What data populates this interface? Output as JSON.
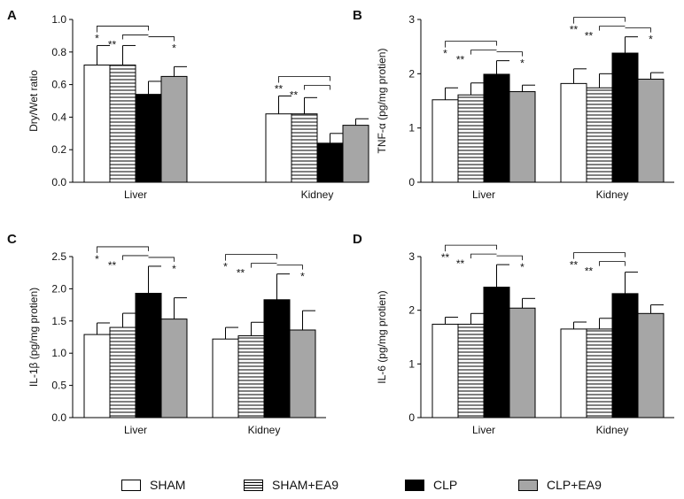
{
  "chart_data": [
    {
      "type": "bar",
      "panel_label": "A",
      "ylabel": "Dry/Wet ratio",
      "ylim": [
        0,
        1.0
      ],
      "yticks": [
        "0.0",
        "0.2",
        "0.4",
        "0.6",
        "0.8",
        "1.0"
      ],
      "categories": [
        "Liver",
        "Kidney"
      ],
      "series": [
        {
          "name": "SHAM",
          "values": [
            0.72,
            0.42
          ],
          "errors": [
            0.12,
            0.11
          ]
        },
        {
          "name": "SHAM+EA9",
          "values": [
            0.72,
            0.42
          ],
          "errors": [
            0.12,
            0.1
          ]
        },
        {
          "name": "CLP",
          "values": [
            0.54,
            0.24
          ],
          "errors": [
            0.08,
            0.06
          ]
        },
        {
          "name": "CLP+EA9",
          "values": [
            0.65,
            0.35
          ],
          "errors": [
            0.06,
            0.04
          ]
        }
      ],
      "significance": [
        {
          "category": "Liver",
          "marks": [
            "*",
            "**",
            "",
            "*"
          ]
        },
        {
          "category": "Kidney",
          "marks": [
            "**",
            "**",
            "",
            ""
          ]
        }
      ]
    },
    {
      "type": "bar",
      "panel_label": "B",
      "ylabel": "TNF-α (pg/mg protien)",
      "ylim": [
        0,
        3
      ],
      "yticks": [
        "0",
        "1",
        "2",
        "3"
      ],
      "categories": [
        "Liver",
        "Kidney"
      ],
      "series": [
        {
          "name": "SHAM",
          "values": [
            1.52,
            1.82
          ],
          "errors": [
            0.22,
            0.27
          ]
        },
        {
          "name": "SHAM+EA9",
          "values": [
            1.61,
            1.74
          ],
          "errors": [
            0.22,
            0.26
          ]
        },
        {
          "name": "CLP",
          "values": [
            1.99,
            2.38
          ],
          "errors": [
            0.25,
            0.3
          ]
        },
        {
          "name": "CLP+EA9",
          "values": [
            1.67,
            1.9
          ],
          "errors": [
            0.12,
            0.12
          ]
        }
      ],
      "significance": [
        {
          "category": "Liver",
          "marks": [
            "*",
            "**",
            "",
            "*"
          ]
        },
        {
          "category": "Kidney",
          "marks": [
            "**",
            "**",
            "",
            "*"
          ]
        }
      ]
    },
    {
      "type": "bar",
      "panel_label": "C",
      "ylabel": "IL-1β (pg/mg protien)",
      "ylim": [
        0,
        2.5
      ],
      "yticks": [
        "0.0",
        "0.5",
        "1.0",
        "1.5",
        "2.0",
        "2.5"
      ],
      "categories": [
        "Liver",
        "Kidney"
      ],
      "series": [
        {
          "name": "SHAM",
          "values": [
            1.29,
            1.22
          ],
          "errors": [
            0.18,
            0.18
          ]
        },
        {
          "name": "SHAM+EA9",
          "values": [
            1.4,
            1.27
          ],
          "errors": [
            0.22,
            0.21
          ]
        },
        {
          "name": "CLP",
          "values": [
            1.93,
            1.83
          ],
          "errors": [
            0.42,
            0.4
          ]
        },
        {
          "name": "CLP+EA9",
          "values": [
            1.53,
            1.36
          ],
          "errors": [
            0.33,
            0.3
          ]
        }
      ],
      "significance": [
        {
          "category": "Liver",
          "marks": [
            "*",
            "**",
            "",
            "*"
          ]
        },
        {
          "category": "Kidney",
          "marks": [
            "*",
            "**",
            "",
            "*"
          ]
        }
      ]
    },
    {
      "type": "bar",
      "panel_label": "D",
      "ylabel": "IL-6 (pg/mg protien)",
      "ylim": [
        0,
        3
      ],
      "yticks": [
        "0",
        "1",
        "2",
        "3"
      ],
      "categories": [
        "Liver",
        "Kidney"
      ],
      "series": [
        {
          "name": "SHAM",
          "values": [
            1.74,
            1.65
          ],
          "errors": [
            0.13,
            0.13
          ]
        },
        {
          "name": "SHAM+EA9",
          "values": [
            1.74,
            1.65
          ],
          "errors": [
            0.2,
            0.2
          ]
        },
        {
          "name": "CLP",
          "values": [
            2.43,
            2.31
          ],
          "errors": [
            0.42,
            0.4
          ]
        },
        {
          "name": "CLP+EA9",
          "values": [
            2.04,
            1.94
          ],
          "errors": [
            0.18,
            0.16
          ]
        }
      ],
      "significance": [
        {
          "category": "Liver",
          "marks": [
            "**",
            "**",
            "",
            "*"
          ]
        },
        {
          "category": "Kidney",
          "marks": [
            "**",
            "**",
            "",
            ""
          ]
        }
      ]
    }
  ],
  "legend": [
    {
      "name": "SHAM",
      "fill": "#ffffff",
      "pattern": "none"
    },
    {
      "name": "SHAM+EA9",
      "fill": "#ffffff",
      "pattern": "horizontal-lines"
    },
    {
      "name": "CLP",
      "fill": "#000000",
      "pattern": "none"
    },
    {
      "name": "CLP+EA9",
      "fill": "#a6a6a6",
      "pattern": "none"
    }
  ]
}
